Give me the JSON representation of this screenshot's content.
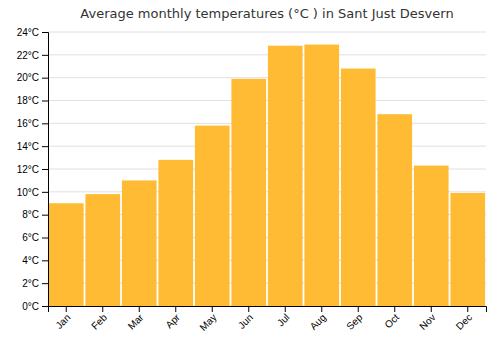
{
  "chart_data": {
    "type": "bar",
    "title": "Average monthly temperatures (°C ) in Sant Just Desvern",
    "categories": [
      "Jan",
      "Feb",
      "Mar",
      "Apr",
      "May",
      "Jun",
      "Jul",
      "Aug",
      "Sep",
      "Oct",
      "Nov",
      "Dec"
    ],
    "values": [
      9.0,
      9.8,
      11.0,
      12.8,
      15.8,
      19.9,
      22.8,
      22.9,
      20.8,
      16.8,
      12.3,
      9.9
    ],
    "color": "#FFBB33",
    "ylim": [
      0,
      24
    ],
    "yticks": [
      {
        "value": 0,
        "label": "0°C"
      },
      {
        "value": 2,
        "label": "2°C"
      },
      {
        "value": 4,
        "label": "4°C"
      },
      {
        "value": 6,
        "label": "6°C"
      },
      {
        "value": 8,
        "label": "8°C"
      },
      {
        "value": 10,
        "label": "10°C"
      },
      {
        "value": 12,
        "label": "12°C"
      },
      {
        "value": 14,
        "label": "14°C"
      },
      {
        "value": 16,
        "label": "16°C"
      },
      {
        "value": 18,
        "label": "18°C"
      },
      {
        "value": 20,
        "label": "20°C"
      },
      {
        "value": 22,
        "label": "22°C"
      },
      {
        "value": 24,
        "label": "24°C"
      }
    ],
    "grid": true
  }
}
